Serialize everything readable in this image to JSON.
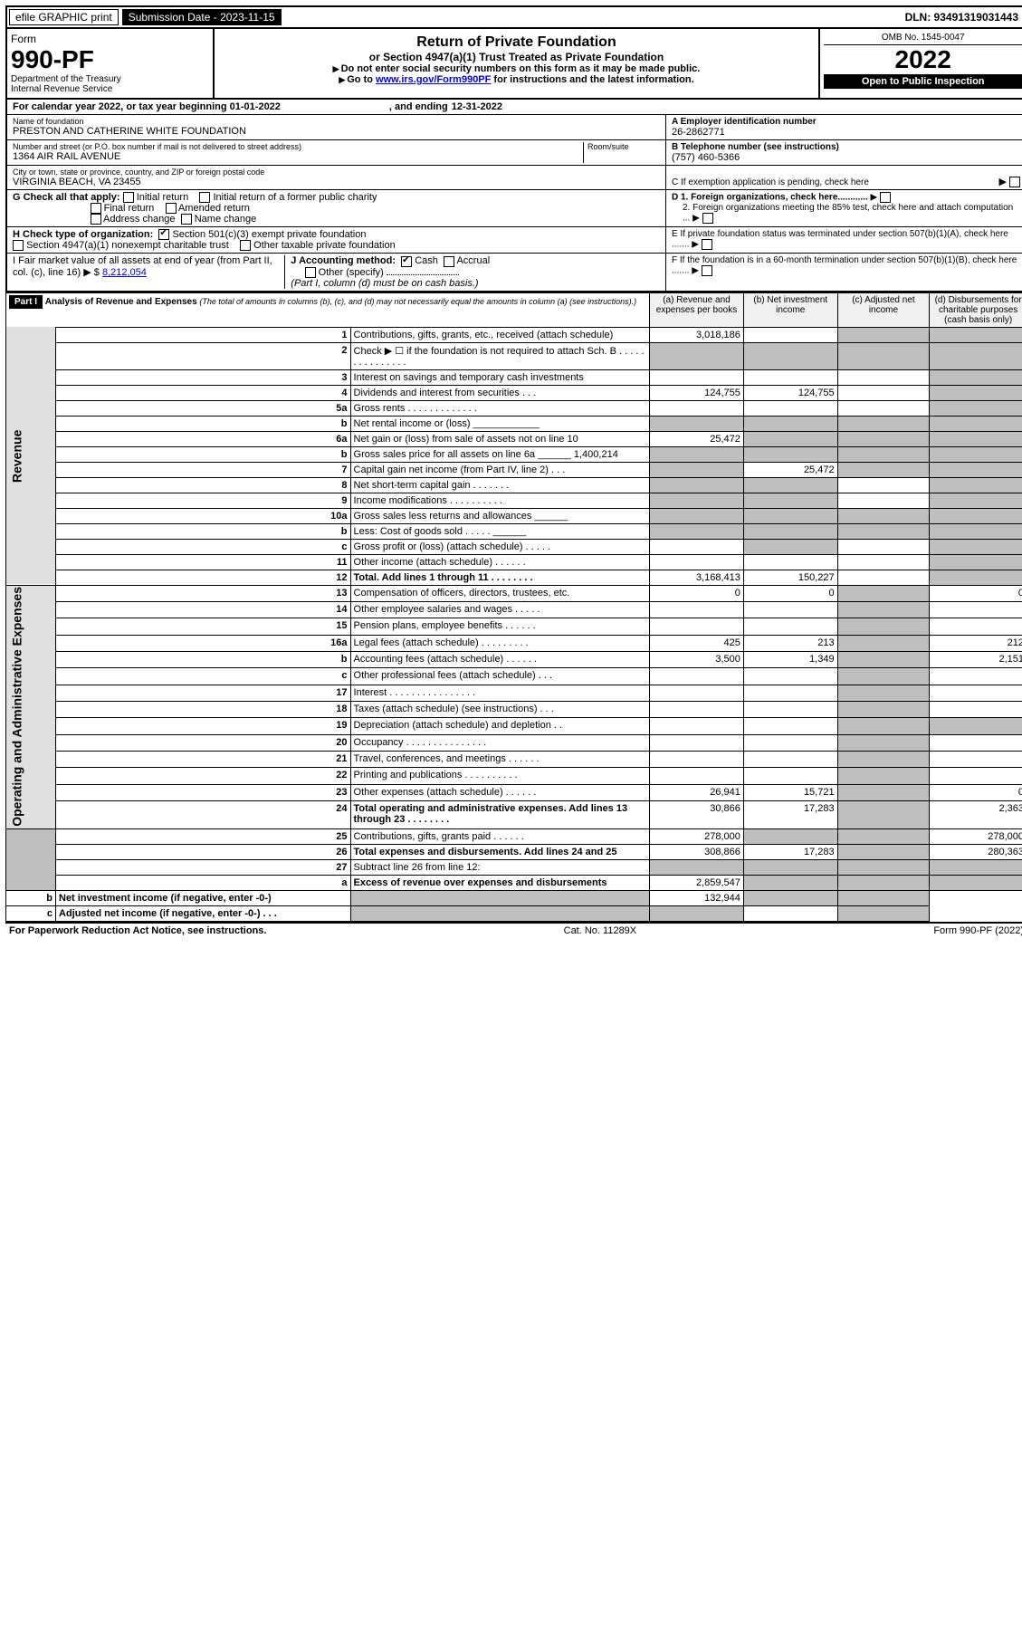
{
  "header": {
    "efile": "efile GRAPHIC print",
    "submission": "Submission Date - 2023-11-15",
    "dln": "DLN: 93491319031443",
    "form_label": "Form",
    "form_number": "990-PF",
    "dept1": "Department of the Treasury",
    "dept2": "Internal Revenue Service",
    "title": "Return of Private Foundation",
    "subtitle": "or Section 4947(a)(1) Trust Treated as Private Foundation",
    "note1": "Do not enter social security numbers on this form as it may be made public.",
    "note2_pre": "Go to ",
    "note2_link": "www.irs.gov/Form990PF",
    "note2_post": " for instructions and the latest information.",
    "omb": "OMB No. 1545-0047",
    "year": "2022",
    "open": "Open to Public Inspection"
  },
  "cal": {
    "text": "For calendar year 2022, or tax year beginning 01-01-2022",
    "ending_label": ", and ending",
    "ending": "12-31-2022"
  },
  "name": {
    "label": "Name of foundation",
    "value": "PRESTON AND CATHERINE WHITE FOUNDATION",
    "ein_label": "A Employer identification number",
    "ein": "26-2862771"
  },
  "addr": {
    "label": "Number and street (or P.O. box number if mail is not delivered to street address)",
    "street": "1364 AIR RAIL AVENUE",
    "room_label": "Room/suite",
    "tel_label": "B Telephone number (see instructions)",
    "tel": "(757) 460-5366"
  },
  "city": {
    "label": "City or town, state or province, country, and ZIP or foreign postal code",
    "value": "VIRGINIA BEACH, VA  23455",
    "c_label": "C If exemption application is pending, check here"
  },
  "g": {
    "label": "G Check all that apply:",
    "initial": "Initial return",
    "initial_former": "Initial return of a former public charity",
    "final": "Final return",
    "amended": "Amended return",
    "addr_change": "Address change",
    "name_change": "Name change",
    "d1": "D 1. Foreign organizations, check here............",
    "d2": "2. Foreign organizations meeting the 85% test, check here and attach computation ..."
  },
  "h": {
    "label": "H Check type of organization:",
    "opt1": "Section 501(c)(3) exempt private foundation",
    "opt2": "Section 4947(a)(1) nonexempt charitable trust",
    "opt3": "Other taxable private foundation",
    "e_label": "E If private foundation status was terminated under section 507(b)(1)(A), check here ......."
  },
  "i": {
    "label": "I Fair market value of all assets at end of year (from Part II, col. (c), line 16)",
    "value": "8,212,054",
    "j_label": "J Accounting method:",
    "cash": "Cash",
    "accrual": "Accrual",
    "other": "Other (specify)",
    "note": "(Part I, column (d) must be on cash basis.)",
    "f_label": "F If the foundation is in a 60-month termination under section 507(b)(1)(B), check here ......."
  },
  "part1": {
    "title": "Part I",
    "heading": "Analysis of Revenue and Expenses",
    "sub": "(The total of amounts in columns (b), (c), and (d) may not necessarily equal the amounts in column (a) (see instructions).)",
    "col_a": "(a) Revenue and expenses per books",
    "col_b": "(b) Net investment income",
    "col_c": "(c) Adjusted net income",
    "col_d": "(d) Disbursements for charitable purposes (cash basis only)"
  },
  "sections": {
    "revenue": "Revenue",
    "opadmin": "Operating and Administrative Expenses"
  },
  "lines": [
    {
      "n": "1",
      "d": "Contributions, gifts, grants, etc., received (attach schedule)",
      "a": "3,018,186",
      "b": "",
      "c": "g",
      "dd": "g"
    },
    {
      "n": "2",
      "d": "Check ▶ ☐ if the foundation is not required to attach Sch. B   . . . . . . . . . . . . . . .",
      "a": "g",
      "b": "g",
      "c": "g",
      "dd": "g"
    },
    {
      "n": "3",
      "d": "Interest on savings and temporary cash investments",
      "a": "",
      "b": "",
      "c": "",
      "dd": "g"
    },
    {
      "n": "4",
      "d": "Dividends and interest from securities   . . .",
      "a": "124,755",
      "b": "124,755",
      "c": "",
      "dd": "g"
    },
    {
      "n": "5a",
      "d": "Gross rents   . . . . . . . . . . . . .",
      "a": "",
      "b": "",
      "c": "",
      "dd": "g"
    },
    {
      "n": "b",
      "d": "Net rental income or (loss)  ____________",
      "a": "g",
      "b": "g",
      "c": "g",
      "dd": "g"
    },
    {
      "n": "6a",
      "d": "Net gain or (loss) from sale of assets not on line 10",
      "a": "25,472",
      "b": "g",
      "c": "g",
      "dd": "g"
    },
    {
      "n": "b",
      "d": "Gross sales price for all assets on line 6a ______ 1,400,214",
      "a": "g",
      "b": "g",
      "c": "g",
      "dd": "g"
    },
    {
      "n": "7",
      "d": "Capital gain net income (from Part IV, line 2)  . . .",
      "a": "g",
      "b": "25,472",
      "c": "g",
      "dd": "g"
    },
    {
      "n": "8",
      "d": "Net short-term capital gain   . . . . . . .",
      "a": "g",
      "b": "g",
      "c": "",
      "dd": "g"
    },
    {
      "n": "9",
      "d": "Income modifications  . . . . . . . . . .",
      "a": "g",
      "b": "g",
      "c": "",
      "dd": "g"
    },
    {
      "n": "10a",
      "d": "Gross sales less returns and allowances  ______",
      "a": "g",
      "b": "g",
      "c": "g",
      "dd": "g"
    },
    {
      "n": "b",
      "d": "Less: Cost of goods sold   . . . . .  ______",
      "a": "g",
      "b": "g",
      "c": "g",
      "dd": "g"
    },
    {
      "n": "c",
      "d": "Gross profit or (loss) (attach schedule)   . . . . .",
      "a": "",
      "b": "g",
      "c": "",
      "dd": "g"
    },
    {
      "n": "11",
      "d": "Other income (attach schedule)   . . . . . .",
      "a": "",
      "b": "",
      "c": "",
      "dd": "g"
    },
    {
      "n": "12",
      "d": "Total. Add lines 1 through 11  . . . . . . . .",
      "a": "3,168,413",
      "b": "150,227",
      "c": "",
      "dd": "g",
      "bold": true
    },
    {
      "n": "13",
      "d": "Compensation of officers, directors, trustees, etc.",
      "a": "0",
      "b": "0",
      "c": "g",
      "dd": "0"
    },
    {
      "n": "14",
      "d": "Other employee salaries and wages   . . . . .",
      "a": "",
      "b": "",
      "c": "g",
      "dd": ""
    },
    {
      "n": "15",
      "d": "Pension plans, employee benefits  . . . . . .",
      "a": "",
      "b": "",
      "c": "g",
      "dd": ""
    },
    {
      "n": "16a",
      "d": "Legal fees (attach schedule)  . . . . . . . . .",
      "a": "425",
      "b": "213",
      "c": "g",
      "dd": "212"
    },
    {
      "n": "b",
      "d": "Accounting fees (attach schedule)  . . . . . .",
      "a": "3,500",
      "b": "1,349",
      "c": "g",
      "dd": "2,151"
    },
    {
      "n": "c",
      "d": "Other professional fees (attach schedule)   . . .",
      "a": "",
      "b": "",
      "c": "g",
      "dd": ""
    },
    {
      "n": "17",
      "d": "Interest  . . . . . . . . . . . . . . . .",
      "a": "",
      "b": "",
      "c": "g",
      "dd": ""
    },
    {
      "n": "18",
      "d": "Taxes (attach schedule) (see instructions)    . . .",
      "a": "",
      "b": "",
      "c": "g",
      "dd": ""
    },
    {
      "n": "19",
      "d": "Depreciation (attach schedule) and depletion   . .",
      "a": "",
      "b": "",
      "c": "g",
      "dd": "g"
    },
    {
      "n": "20",
      "d": "Occupancy  . . . . . . . . . . . . . . .",
      "a": "",
      "b": "",
      "c": "g",
      "dd": ""
    },
    {
      "n": "21",
      "d": "Travel, conferences, and meetings  . . . . . .",
      "a": "",
      "b": "",
      "c": "g",
      "dd": ""
    },
    {
      "n": "22",
      "d": "Printing and publications  . . . . . . . . . .",
      "a": "",
      "b": "",
      "c": "g",
      "dd": ""
    },
    {
      "n": "23",
      "d": "Other expenses (attach schedule)  . . . . . .",
      "a": "26,941",
      "b": "15,721",
      "c": "g",
      "dd": "0"
    },
    {
      "n": "24",
      "d": "Total operating and administrative expenses. Add lines 13 through 23   . . . . . . . .",
      "a": "30,866",
      "b": "17,283",
      "c": "g",
      "dd": "2,363",
      "bold": true
    },
    {
      "n": "25",
      "d": "Contributions, gifts, grants paid   . . . . . .",
      "a": "278,000",
      "b": "g",
      "c": "g",
      "dd": "278,000"
    },
    {
      "n": "26",
      "d": "Total expenses and disbursements. Add lines 24 and 25",
      "a": "308,866",
      "b": "17,283",
      "c": "g",
      "dd": "280,363",
      "bold": true
    },
    {
      "n": "27",
      "d": "Subtract line 26 from line 12:",
      "a": "g",
      "b": "g",
      "c": "g",
      "dd": "g"
    },
    {
      "n": "a",
      "d": "Excess of revenue over expenses and disbursements",
      "a": "2,859,547",
      "b": "g",
      "c": "g",
      "dd": "g",
      "bold": true
    },
    {
      "n": "b",
      "d": "Net investment income (if negative, enter -0-)",
      "a": "g",
      "b": "132,944",
      "c": "g",
      "dd": "g",
      "bold": true
    },
    {
      "n": "c",
      "d": "Adjusted net income (if negative, enter -0-)  . . .",
      "a": "g",
      "b": "g",
      "c": "",
      "dd": "g",
      "bold": true
    }
  ],
  "footer": {
    "left": "For Paperwork Reduction Act Notice, see instructions.",
    "mid": "Cat. No. 11289X",
    "right": "Form 990-PF (2022)"
  },
  "colors": {
    "black": "#000000",
    "grey": "#bfbfbf",
    "link": "#0000ee"
  }
}
